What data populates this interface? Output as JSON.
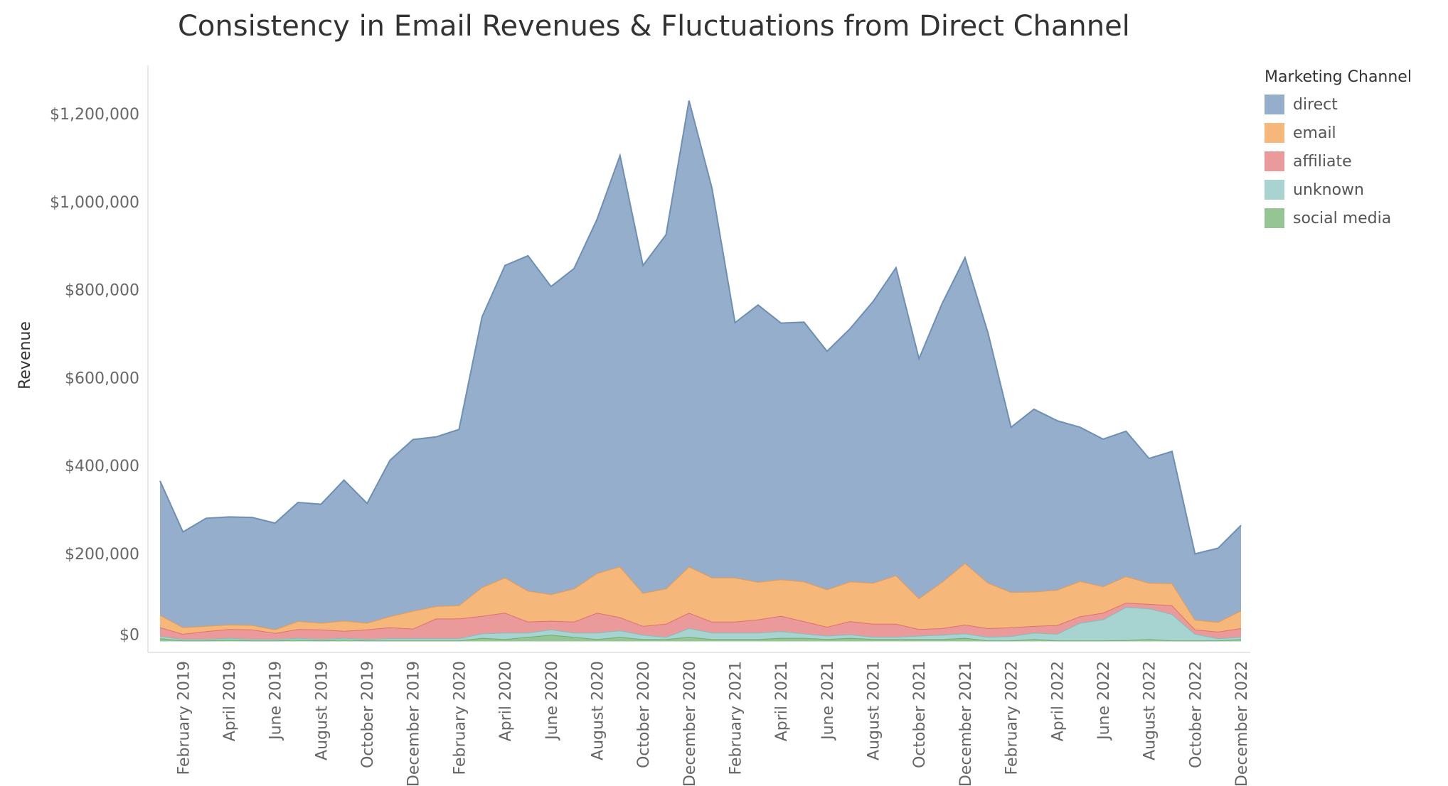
{
  "chart_data": {
    "type": "area",
    "stacked": true,
    "title": "Consistency in Email Revenues & Fluctuations from Direct Channel",
    "xlabel": "",
    "ylabel": "Revenue",
    "ylim": [
      -25000,
      1310000
    ],
    "y_ticks": [
      0,
      200000,
      400000,
      600000,
      800000,
      1000000,
      1200000
    ],
    "y_tick_labels": [
      "$0",
      "$200,000",
      "$400,000",
      "$600,000",
      "$800,000",
      "$1,000,000",
      "$1,200,000"
    ],
    "x": [
      "January 2019",
      "February 2019",
      "March 2019",
      "April 2019",
      "May 2019",
      "June 2019",
      "July 2019",
      "August 2019",
      "September 2019",
      "October 2019",
      "November 2019",
      "December 2019",
      "January 2020",
      "February 2020",
      "March 2020",
      "April 2020",
      "May 2020",
      "June 2020",
      "July 2020",
      "August 2020",
      "September 2020",
      "October 2020",
      "November 2020",
      "December 2020",
      "January 2021",
      "February 2021",
      "March 2021",
      "April 2021",
      "May 2021",
      "June 2021",
      "July 2021",
      "August 2021",
      "September 2021",
      "October 2021",
      "November 2021",
      "December 2021",
      "January 2022",
      "February 2022",
      "March 2022",
      "April 2022",
      "May 2022",
      "June 2022",
      "July 2022",
      "August 2022",
      "September 2022",
      "October 2022",
      "November 2022",
      "December 2022"
    ],
    "x_tick_labels": [
      "",
      "February 2019",
      "",
      "April 2019",
      "",
      "June 2019",
      "",
      "August 2019",
      "",
      "October 2019",
      "",
      "December 2019",
      "",
      "February 2020",
      "",
      "April 2020",
      "",
      "June 2020",
      "",
      "August 2020",
      "",
      "October 2020",
      "",
      "December 2020",
      "",
      "February 2021",
      "",
      "April 2021",
      "",
      "June 2021",
      "",
      "August 2021",
      "",
      "October 2021",
      "",
      "December 2021",
      "",
      "February 2022",
      "",
      "April 2022",
      "",
      "June 2022",
      "",
      "August 2022",
      "",
      "October 2022",
      "",
      "December 2022"
    ],
    "legend_title": "Marketing Channel",
    "legend_position": "top-right",
    "grid": false,
    "series": [
      {
        "name": "direct",
        "color": "#94AECB",
        "values": [
          305000,
          217000,
          245000,
          245000,
          245000,
          242000,
          270000,
          270000,
          320000,
          272000,
          355000,
          390000,
          385000,
          400000,
          615000,
          710000,
          762000,
          700000,
          728000,
          805000,
          935000,
          745000,
          805000,
          1060000,
          885000,
          580000,
          630000,
          583000,
          590000,
          542000,
          575000,
          640000,
          700000,
          545000,
          633000,
          695000,
          568000,
          375000,
          415000,
          385000,
          350000,
          335000,
          330000,
          283000,
          300000,
          150000,
          168000,
          194000
        ]
      },
      {
        "name": "email",
        "color": "#F5B87A",
        "values": [
          28000,
          15000,
          12000,
          10000,
          10000,
          8000,
          18000,
          15000,
          23000,
          15000,
          25000,
          40000,
          28000,
          30000,
          65000,
          80000,
          70000,
          60000,
          75000,
          90000,
          115000,
          75000,
          80000,
          105000,
          100000,
          100000,
          85000,
          83000,
          90000,
          85000,
          90000,
          93000,
          110000,
          70000,
          105000,
          140000,
          103000,
          80000,
          78000,
          80000,
          80000,
          60000,
          60000,
          48000,
          50000,
          22000,
          22000,
          40000
        ]
      },
      {
        "name": "affiliate",
        "color": "#EA9A9A",
        "values": [
          20000,
          12000,
          18000,
          20000,
          22000,
          14000,
          20000,
          22000,
          16000,
          22000,
          25000,
          22000,
          45000,
          45000,
          40000,
          45000,
          25000,
          20000,
          25000,
          45000,
          30000,
          20000,
          30000,
          35000,
          25000,
          25000,
          30000,
          35000,
          28000,
          20000,
          30000,
          30000,
          30000,
          15000,
          15000,
          20000,
          20000,
          20000,
          15000,
          20000,
          15000,
          15000,
          10000,
          10000,
          20000,
          10000,
          15000,
          20000
        ]
      },
      {
        "name": "unknown",
        "color": "#A7D3D0",
        "values": [
          5000,
          3000,
          3000,
          4000,
          3000,
          3000,
          4000,
          3000,
          4000,
          3000,
          5000,
          5000,
          5000,
          5000,
          10000,
          15000,
          10000,
          12000,
          10000,
          15000,
          15000,
          10000,
          5000,
          20000,
          15000,
          15000,
          15000,
          15000,
          10000,
          8000,
          8000,
          5000,
          5000,
          8000,
          10000,
          10000,
          8000,
          10000,
          15000,
          15000,
          40000,
          48000,
          75000,
          70000,
          60000,
          15000,
          5000,
          5000
        ]
      },
      {
        "name": "social media",
        "color": "#95C593",
        "values": [
          7000,
          2000,
          2000,
          4000,
          2000,
          2000,
          4000,
          2000,
          4000,
          2000,
          2000,
          2000,
          2000,
          2000,
          8000,
          5000,
          10000,
          15000,
          10000,
          5000,
          10000,
          5000,
          5000,
          10000,
          5000,
          5000,
          5000,
          8000,
          8000,
          5000,
          8000,
          5000,
          5000,
          5000,
          5000,
          8000,
          2000,
          2000,
          5000,
          2000,
          2000,
          2000,
          3000,
          5000,
          2000,
          2000,
          2000,
          5000
        ]
      }
    ]
  }
}
